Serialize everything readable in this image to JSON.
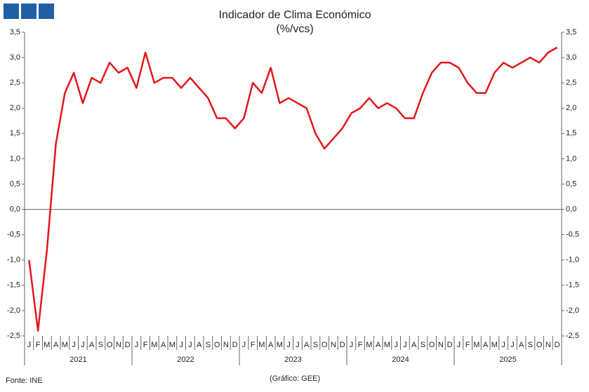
{
  "chart_data": {
    "type": "line",
    "title": "Indicador de Clima Económico",
    "subtitle": "(%/vcs)",
    "source": "Fonte: INE",
    "credit": "(Gráfico: GEE)",
    "categories": [
      "J",
      "F",
      "M",
      "A",
      "M",
      "J",
      "J",
      "A",
      "S",
      "O",
      "N",
      "D",
      "J",
      "F",
      "M",
      "A",
      "M",
      "J",
      "J",
      "A",
      "S",
      "O",
      "N",
      "D",
      "J",
      "F",
      "M",
      "A",
      "M",
      "J",
      "J",
      "A",
      "S",
      "O",
      "N",
      "D",
      "J",
      "F",
      "M",
      "A",
      "M",
      "J",
      "J",
      "A",
      "S",
      "O",
      "N",
      "D",
      "J",
      "F",
      "M",
      "A",
      "M",
      "J",
      "J",
      "A",
      "S",
      "O",
      "N",
      "D"
    ],
    "years": [
      "2021",
      "2022",
      "2023",
      "2024",
      "2025"
    ],
    "series": [
      {
        "color": "#e3161c",
        "values": [
          -1.0,
          -2.4,
          -0.8,
          1.3,
          2.3,
          2.7,
          2.1,
          2.6,
          2.5,
          2.9,
          2.7,
          2.8,
          2.4,
          3.1,
          2.5,
          2.6,
          2.6,
          2.4,
          2.6,
          2.4,
          2.2,
          1.8,
          1.8,
          1.6,
          1.8,
          2.5,
          2.3,
          2.8,
          2.1,
          2.2,
          2.1,
          2.0,
          1.5,
          1.2,
          1.4,
          1.6,
          1.9,
          2.0,
          2.2,
          2.0,
          2.1,
          2.0,
          1.8,
          1.8,
          2.3,
          2.7,
          2.9,
          2.9,
          2.8,
          2.5,
          2.3,
          2.3,
          2.7,
          2.9,
          2.8,
          2.9,
          3.0,
          2.9,
          3.1,
          3.2
        ]
      }
    ],
    "ylim": [
      -2.5,
      3.5
    ],
    "yticks": [
      {
        "value": -2.5,
        "label": "-2,5"
      },
      {
        "value": -2,
        "label": "-2,0"
      },
      {
        "value": -1.5,
        "label": "-1,5"
      },
      {
        "value": -1,
        "label": "-1,0"
      },
      {
        "value": -0.5,
        "label": "-0,5"
      },
      {
        "value": 0,
        "label": "0,0"
      },
      {
        "value": 0.5,
        "label": "0,5"
      },
      {
        "value": 1,
        "label": "1,0"
      },
      {
        "value": 1.5,
        "label": "1,5"
      },
      {
        "value": 2,
        "label": "2,0"
      },
      {
        "value": 2.5,
        "label": "2,5"
      },
      {
        "value": 3,
        "label": "3,0"
      },
      {
        "value": 3.5,
        "label": "3,5"
      }
    ],
    "grid": false
  }
}
